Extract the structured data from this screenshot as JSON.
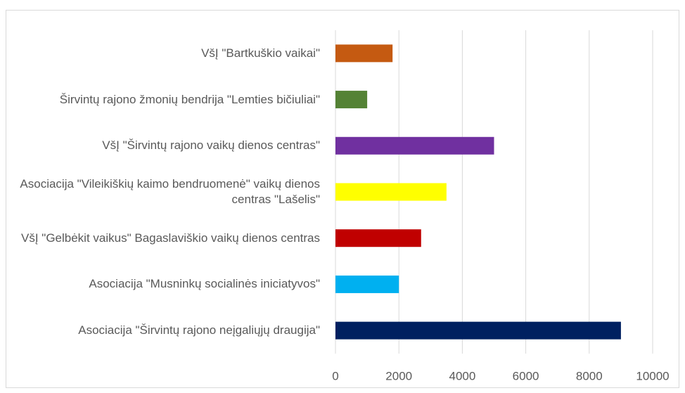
{
  "chart_data": {
    "type": "bar",
    "orientation": "horizontal",
    "categories": [
      "VšĮ \"Bartkuškio vaikai\"",
      "Širvintų rajono žmonių bendrija \"Lemties bičiuliai\"",
      "VšĮ \"Širvintų rajono vaikų dienos centras\"",
      "Asociacija \"Vileikiškių kaimo bendruomenė\" vaikų dienos centras \"Lašelis\"",
      "VšĮ \"Gelbėkit vaikus\" Bagaslaviškio vaikų dienos centras",
      "Asociacija \"Musninkų socialinės iniciatyvos\"",
      "Asociacija \"Širvintų rajono neįgaliųjų draugija\""
    ],
    "values": [
      1800,
      1000,
      5000,
      3500,
      2700,
      2000,
      9000
    ],
    "colors": [
      "#c55a11",
      "#548235",
      "#7030a0",
      "#ffff00",
      "#c00000",
      "#00b0f0",
      "#002060"
    ],
    "xlim": [
      0,
      10000
    ],
    "xticks": [
      0,
      2000,
      4000,
      6000,
      8000,
      10000
    ],
    "grid": true
  }
}
